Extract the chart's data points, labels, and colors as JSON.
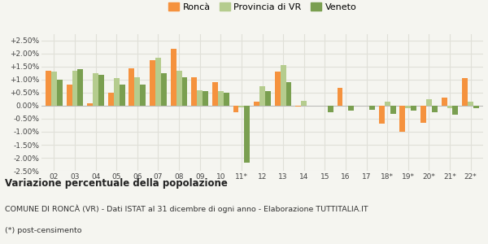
{
  "categories": [
    "02",
    "03",
    "04",
    "05",
    "06",
    "07",
    "08",
    "09",
    "10",
    "11*",
    "12",
    "13",
    "14",
    "15",
    "16",
    "17",
    "18*",
    "19*",
    "20*",
    "21*",
    "22*"
  ],
  "ronca": [
    1.35,
    0.8,
    0.1,
    0.5,
    1.45,
    1.75,
    2.2,
    1.1,
    0.9,
    -0.25,
    0.15,
    1.3,
    -0.02,
    0.0,
    0.7,
    0.0,
    -0.7,
    -1.0,
    -0.65,
    0.3,
    1.05
  ],
  "provincia_vr": [
    1.3,
    1.35,
    1.25,
    1.05,
    1.1,
    1.85,
    1.35,
    0.6,
    0.55,
    -0.05,
    0.75,
    1.55,
    0.2,
    0.0,
    0.0,
    0.0,
    0.15,
    -0.1,
    0.25,
    -0.1,
    0.15
  ],
  "veneto": [
    1.0,
    1.4,
    1.2,
    0.8,
    0.8,
    1.25,
    1.1,
    0.55,
    0.5,
    -2.2,
    0.55,
    0.9,
    0.0,
    -0.25,
    -0.2,
    -0.15,
    -0.3,
    -0.2,
    -0.25,
    -0.35,
    -0.1
  ],
  "color_ronca": "#f5923e",
  "color_provincia": "#b5cc8e",
  "color_veneto": "#7a9f50",
  "legend_labels": [
    "Roncà",
    "Provincia di VR",
    "Veneto"
  ],
  "title_bold": "Variazione percentuale della popolazione",
  "subtitle": "COMUNE DI RONCÀ (VR) - Dati ISTAT al 31 dicembre di ogni anno - Elaborazione TUTTITALIA.IT",
  "footnote": "(*) post-censimento",
  "ylim": [
    -2.5,
    2.75
  ],
  "yticks": [
    -2.5,
    -2.0,
    -1.5,
    -1.0,
    -0.5,
    0.0,
    0.5,
    1.0,
    1.5,
    2.0,
    2.5
  ],
  "bg_color": "#f5f5f0",
  "bar_width": 0.27,
  "grid_color": "#e0e0d8"
}
